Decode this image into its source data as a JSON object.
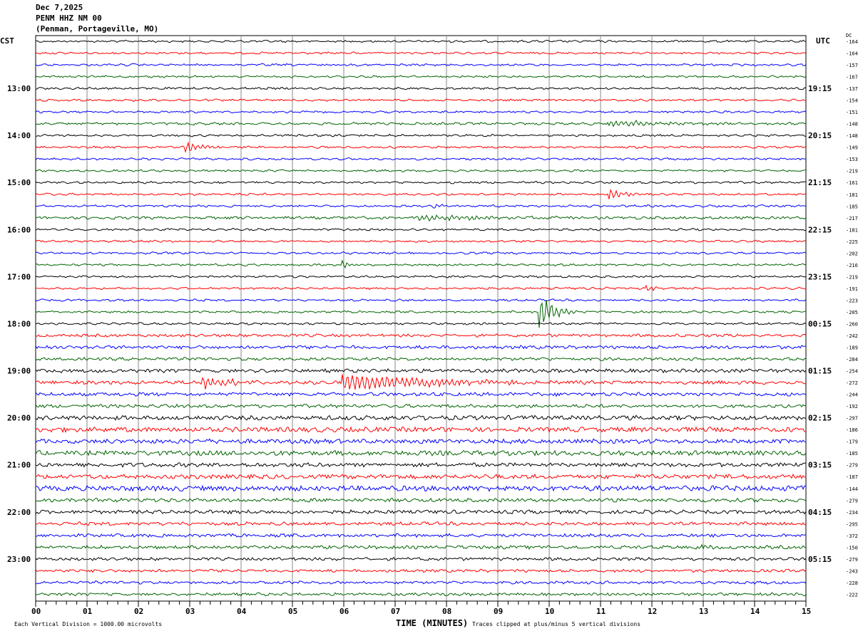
{
  "header": {
    "date": "Dec 7,2025",
    "station": "PENM HHZ NM 00",
    "location": "(Penman, Portageville, MO)"
  },
  "chart_data": {
    "type": "line",
    "title": "PENM HHZ NM 00",
    "left_timezone": "CST",
    "right_timezone": "UTC",
    "dc_label": "DC",
    "xlabel": "TIME (MINUTES)",
    "xlim": [
      0,
      15
    ],
    "x_ticks": [
      "00",
      "01",
      "02",
      "03",
      "04",
      "05",
      "06",
      "07",
      "08",
      "09",
      "10",
      "11",
      "12",
      "13",
      "14",
      "15"
    ],
    "minutes_per_line": 15,
    "trace_colors": [
      "#000000",
      "#ff0000",
      "#0000ff",
      "#006400"
    ],
    "left_hour_labels": [
      "13:00",
      "14:00",
      "15:00",
      "16:00",
      "17:00",
      "18:00",
      "19:00",
      "20:00",
      "21:00",
      "22:00",
      "23:00"
    ],
    "right_hour_labels": [
      "19:15",
      "20:15",
      "21:15",
      "22:15",
      "23:15",
      "00:15",
      "01:15",
      "02:15",
      "03:15",
      "04:15",
      "05:15"
    ],
    "dc_offsets": [
      -164,
      -164,
      -157,
      -167,
      -137,
      -154,
      -151,
      -148,
      -148,
      -149,
      -153,
      -219,
      -161,
      -181,
      -185,
      -217,
      -181,
      -225,
      -202,
      -216,
      -219,
      -191,
      -223,
      -205,
      -260,
      -242,
      -189,
      -284,
      -254,
      -272,
      -244,
      -192,
      -297,
      -186,
      -179,
      -185,
      -279,
      -187,
      -144,
      -279,
      -234,
      -295,
      -372,
      -150,
      -279,
      -243,
      -228,
      -222
    ],
    "noise_level": [
      1,
      1,
      1,
      1,
      1,
      1,
      1,
      1.2,
      1,
      1,
      1,
      1,
      1,
      1,
      1,
      1.4,
      1,
      1,
      1,
      1,
      1,
      1,
      1,
      1,
      1,
      1.5,
      1.8,
      1.6,
      2,
      2,
      2,
      1.8,
      2.5,
      2.8,
      2.5,
      2.8,
      2.2,
      2.5,
      3,
      2,
      2,
      1.8,
      1.8,
      1.8,
      1.6,
      1.5,
      1.5,
      1.5
    ],
    "events": [
      {
        "trace": 7,
        "minute": 11.2,
        "amplitude": 4,
        "duration": 3.5
      },
      {
        "trace": 9,
        "minute": 2.95,
        "amplitude": 9,
        "duration": 0.8
      },
      {
        "trace": 13,
        "minute": 11.2,
        "amplitude": 7,
        "duration": 0.8
      },
      {
        "trace": 14,
        "minute": 7.8,
        "amplitude": 4,
        "duration": 0.4
      },
      {
        "trace": 15,
        "minute": 7.5,
        "amplitude": 4,
        "duration": 4
      },
      {
        "trace": 19,
        "minute": 6.0,
        "amplitude": 6,
        "duration": 0.4
      },
      {
        "trace": 21,
        "minute": 11.9,
        "amplitude": 5,
        "duration": 0.4
      },
      {
        "trace": 23,
        "minute": 9.85,
        "amplitude": 24,
        "duration": 0.8
      },
      {
        "trace": 29,
        "minute": 6.0,
        "amplitude": 12,
        "duration": 5
      },
      {
        "trace": 29,
        "minute": 3.3,
        "amplitude": 9,
        "duration": 1.5
      },
      {
        "trace": 43,
        "minute": 13.0,
        "amplitude": 6,
        "duration": 0.3
      }
    ],
    "footer_left": "Each Vertical Division = 1000.00 microvolts",
    "footer_right": "Traces clipped at plus/minus 5 vertical divisions"
  }
}
